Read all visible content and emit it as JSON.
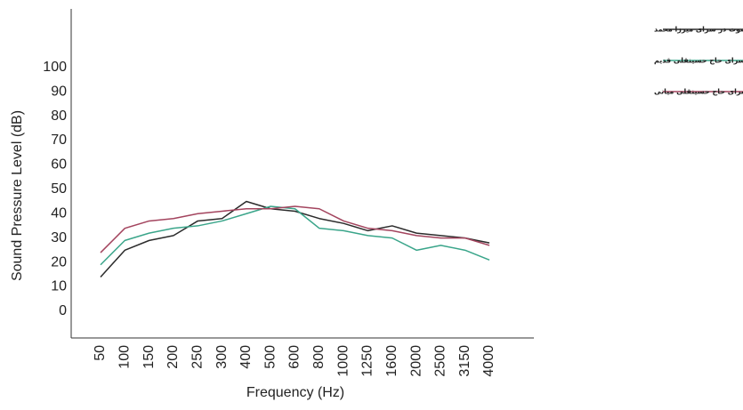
{
  "chart_data": {
    "type": "line",
    "y_label": "Sound Pressure Level (dB)",
    "x_label": "Frequency (Hz)",
    "categories": [
      "50",
      "100",
      "150",
      "200",
      "250",
      "300",
      "400",
      "500",
      "600",
      "800",
      "1000",
      "1250",
      "1600",
      "2000",
      "2500",
      "3150",
      "4000"
    ],
    "series": [
      {
        "name": "میانگین مقادیر میانگینی تراز فشار صوت در سرای میرزا محمد",
        "color": "#2b2b2b",
        "values": [
          14,
          25,
          29,
          31,
          37,
          38,
          45,
          42,
          41,
          38,
          36,
          33,
          35,
          32,
          31,
          30,
          28
        ]
      },
      {
        "name": "میانگین مقادیر میانگینی تراز فشار صوت در سرای حاج حسینقلی قدیم",
        "color": "#3aa58a",
        "values": [
          19,
          29,
          32,
          34,
          35,
          37,
          40,
          43,
          42,
          34,
          33,
          31,
          30,
          25,
          27,
          25,
          21
        ]
      },
      {
        "name": "میانگین مقادیر میانگینی تراز فشار صوت در سرای حاج حسینقلی میانی",
        "color": "#a3445e",
        "values": [
          24,
          34,
          37,
          38,
          40,
          41,
          42,
          42,
          43,
          42,
          37,
          34,
          33,
          31,
          30,
          30,
          27
        ]
      }
    ],
    "ylim": [
      -11,
      124
    ],
    "yticks": [
      0,
      10,
      20,
      30,
      40,
      50,
      60,
      70,
      80,
      90,
      100
    ],
    "grid": false,
    "legend": "top-right"
  }
}
